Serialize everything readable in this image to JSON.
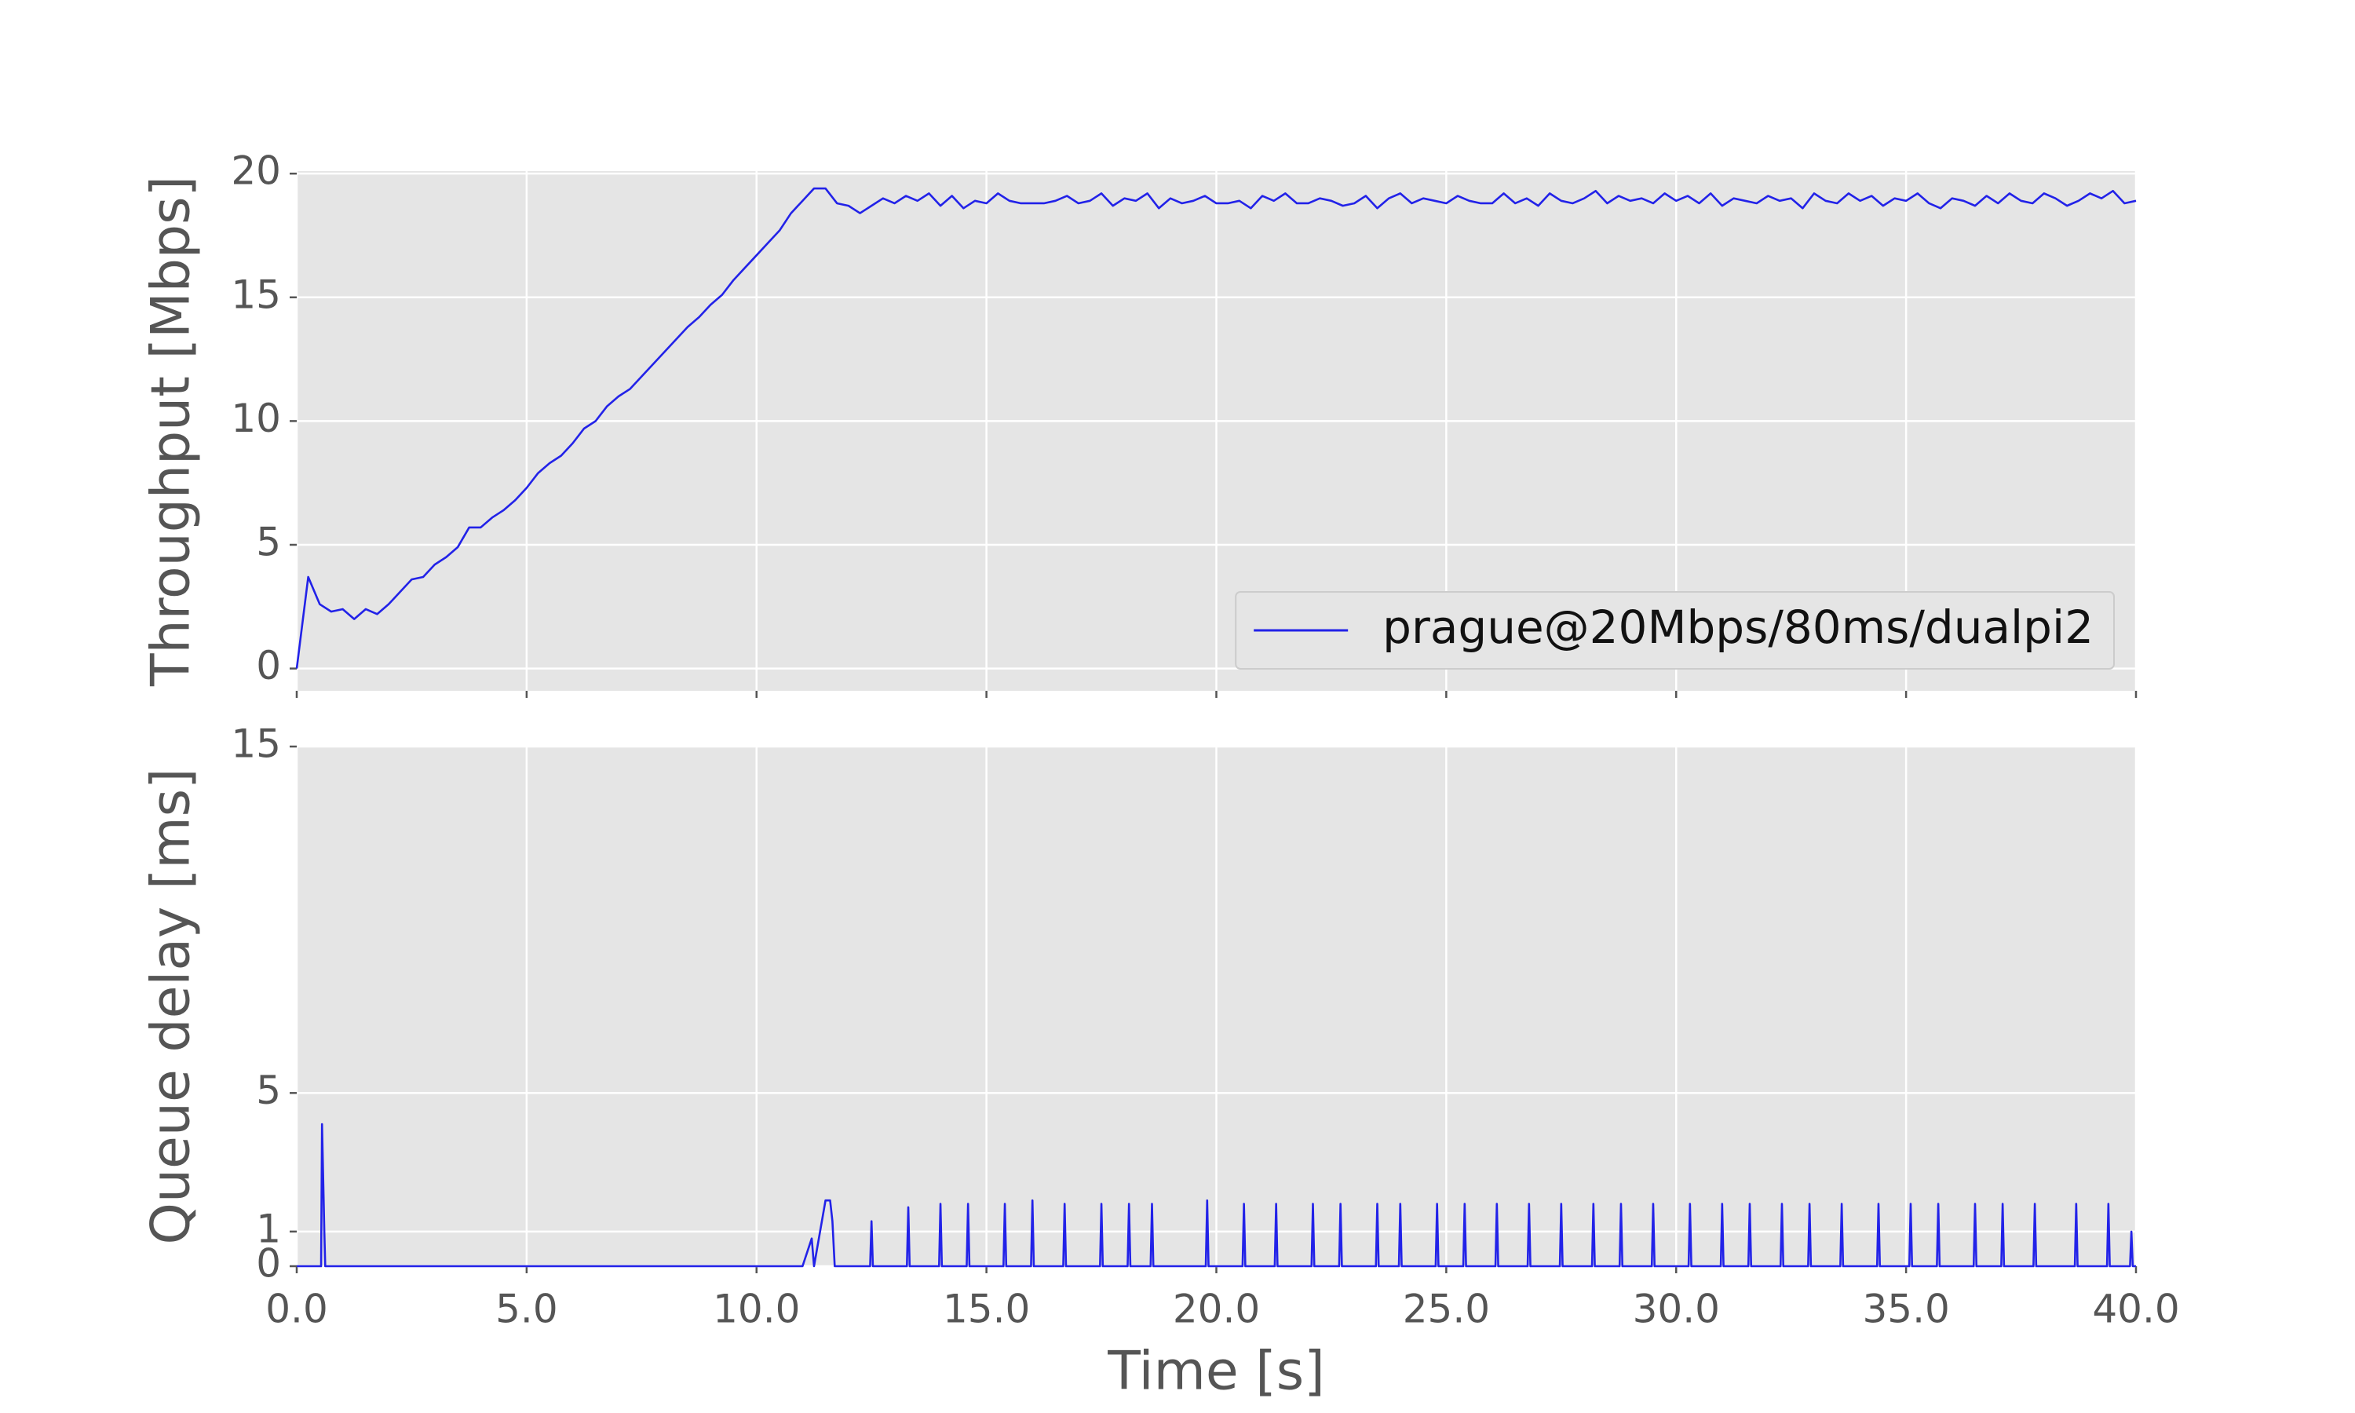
{
  "chart_data": [
    {
      "type": "line",
      "ylabel": "Throughput [Mbps]",
      "x": [
        0,
        0.25,
        0.5,
        0.75,
        1,
        1.25,
        1.5,
        1.75,
        2,
        2.25,
        2.5,
        2.75,
        3,
        3.25,
        3.5,
        3.75,
        4,
        4.25,
        4.5,
        4.75,
        5,
        5.25,
        5.5,
        5.75,
        6,
        6.25,
        6.5,
        6.75,
        7,
        7.25,
        7.5,
        7.75,
        8,
        8.25,
        8.5,
        8.75,
        9,
        9.25,
        9.5,
        9.75,
        10,
        10.25,
        10.5,
        10.75,
        11,
        11.25,
        11.5,
        11.75,
        12,
        12.25,
        12.5,
        12.75,
        13,
        13.25,
        13.5,
        13.75,
        14,
        14.25,
        14.5,
        14.75,
        15,
        15.25,
        15.5,
        15.75,
        16,
        16.25,
        16.5,
        16.75,
        17,
        17.25,
        17.5,
        17.75,
        18,
        18.25,
        18.5,
        18.75,
        19,
        19.25,
        19.5,
        19.75,
        20,
        20.25,
        20.5,
        20.75,
        21,
        21.25,
        21.5,
        21.75,
        22,
        22.25,
        22.5,
        22.75,
        23,
        23.25,
        23.5,
        23.75,
        24,
        24.25,
        24.5,
        24.75,
        25,
        25.25,
        25.5,
        25.75,
        26,
        26.25,
        26.5,
        26.75,
        27,
        27.25,
        27.5,
        27.75,
        28,
        28.25,
        28.5,
        28.75,
        29,
        29.25,
        29.5,
        29.75,
        30,
        30.25,
        30.5,
        30.75,
        31,
        31.25,
        31.5,
        31.75,
        32,
        32.25,
        32.5,
        32.75,
        33,
        33.25,
        33.5,
        33.75,
        34,
        34.25,
        34.5,
        34.75,
        35,
        35.25,
        35.5,
        35.75,
        36,
        36.25,
        36.5,
        36.75,
        37,
        37.25,
        37.5,
        37.75,
        38,
        38.25,
        38.5,
        38.75,
        39,
        39.25,
        39.5,
        39.75,
        40
      ],
      "series": [
        {
          "name": "prague@20Mbps/80ms/dualpi2",
          "color": "#2222e8",
          "values": [
            0,
            3.7,
            2.6,
            2.3,
            2.4,
            2.0,
            2.4,
            2.2,
            2.6,
            3.1,
            3.6,
            3.7,
            4.2,
            4.5,
            4.9,
            5.7,
            5.7,
            6.1,
            6.4,
            6.8,
            7.3,
            7.9,
            8.3,
            8.6,
            9.1,
            9.7,
            10.0,
            10.6,
            11.0,
            11.3,
            11.8,
            12.3,
            12.8,
            13.3,
            13.8,
            14.2,
            14.7,
            15.1,
            15.7,
            16.2,
            16.7,
            17.2,
            17.7,
            18.4,
            18.9,
            19.4,
            19.4,
            18.8,
            18.7,
            18.4,
            18.7,
            19.0,
            18.8,
            19.1,
            18.9,
            19.2,
            18.7,
            19.1,
            18.6,
            18.9,
            18.8,
            19.2,
            18.9,
            18.8,
            18.8,
            18.8,
            18.9,
            19.1,
            18.8,
            18.9,
            19.2,
            18.7,
            19.0,
            18.9,
            19.2,
            18.6,
            19.0,
            18.8,
            18.9,
            19.1,
            18.8,
            18.8,
            18.9,
            18.6,
            19.1,
            18.9,
            19.2,
            18.8,
            18.8,
            19.0,
            18.9,
            18.7,
            18.8,
            19.1,
            18.6,
            19.0,
            19.2,
            18.8,
            19.0,
            18.9,
            18.8,
            19.1,
            18.9,
            18.8,
            18.8,
            19.2,
            18.8,
            19.0,
            18.7,
            19.2,
            18.9,
            18.8,
            19.0,
            19.3,
            18.8,
            19.1,
            18.9,
            19.0,
            18.8,
            19.2,
            18.9,
            19.1,
            18.8,
            19.2,
            18.7,
            19.0,
            18.9,
            18.8,
            19.1,
            18.9,
            19.0,
            18.6,
            19.2,
            18.9,
            18.8,
            19.2,
            18.9,
            19.1,
            18.7,
            19.0,
            18.9,
            19.2,
            18.8,
            18.6,
            19.0,
            18.9,
            18.7,
            19.1,
            18.8,
            19.2,
            18.9,
            18.8,
            19.2,
            19.0,
            18.7,
            18.9,
            19.2,
            19.0,
            19.3,
            18.8,
            18.9
          ]
        }
      ],
      "xlim": [
        0,
        40
      ],
      "xticks": [
        0,
        5,
        10,
        15,
        20,
        25,
        30,
        35,
        40
      ],
      "ylim": [
        -0.9,
        20.1
      ],
      "yticks": [
        0,
        5,
        10,
        15,
        20
      ],
      "grid": true,
      "legend": "lower right"
    },
    {
      "type": "line",
      "ylabel": "Queue delay [ms]",
      "xlabel": "Time [s]",
      "x": [
        0,
        0.53,
        0.55,
        0.6,
        0.62,
        11.0,
        11.2,
        11.25,
        11.5,
        11.6,
        11.65,
        11.7,
        12.47,
        12.5,
        12.53,
        13.27,
        13.3,
        13.33,
        13.97,
        14.0,
        14.03,
        14.57,
        14.6,
        14.63,
        15.37,
        15.4,
        15.43,
        15.97,
        16.0,
        16.03,
        16.67,
        16.7,
        16.73,
        17.47,
        17.5,
        17.53,
        18.07,
        18.1,
        18.13,
        18.57,
        18.6,
        18.63,
        19.77,
        19.8,
        19.83,
        20.57,
        20.6,
        20.63,
        21.27,
        21.3,
        21.33,
        22.07,
        22.1,
        22.13,
        22.67,
        22.7,
        22.73,
        23.47,
        23.5,
        23.53,
        23.97,
        24.0,
        24.03,
        24.77,
        24.8,
        24.83,
        25.37,
        25.4,
        25.43,
        26.07,
        26.1,
        26.13,
        26.77,
        26.8,
        26.83,
        27.47,
        27.5,
        27.53,
        28.17,
        28.2,
        28.23,
        28.77,
        28.8,
        28.83,
        29.47,
        29.5,
        29.53,
        30.27,
        30.3,
        30.33,
        30.97,
        31.0,
        31.03,
        31.57,
        31.6,
        31.63,
        32.27,
        32.3,
        32.33,
        32.87,
        32.9,
        32.93,
        33.57,
        33.6,
        33.63,
        34.37,
        34.4,
        34.43,
        35.07,
        35.1,
        35.13,
        35.67,
        35.7,
        35.73,
        36.47,
        36.5,
        36.53,
        37.07,
        37.1,
        37.13,
        37.77,
        37.8,
        37.83,
        38.67,
        38.7,
        38.73,
        39.37,
        39.4,
        39.43,
        39.87,
        39.9,
        39.93,
        40
      ],
      "series": [
        {
          "color": "#2222e8",
          "values": [
            0,
            0,
            4.1,
            1.0,
            0,
            0,
            0.8,
            0,
            1.9,
            1.9,
            1.3,
            0,
            0,
            1.3,
            0,
            0,
            1.7,
            0,
            0,
            1.8,
            0,
            0,
            1.8,
            0,
            0,
            1.8,
            0,
            0,
            1.9,
            0,
            0,
            1.8,
            0,
            0,
            1.8,
            0,
            0,
            1.8,
            0,
            0,
            1.8,
            0,
            0,
            1.9,
            0,
            0,
            1.8,
            0,
            0,
            1.8,
            0,
            0,
            1.8,
            0,
            0,
            1.8,
            0,
            0,
            1.8,
            0,
            0,
            1.8,
            0,
            0,
            1.8,
            0,
            0,
            1.8,
            0,
            0,
            1.8,
            0,
            0,
            1.8,
            0,
            0,
            1.8,
            0,
            0,
            1.8,
            0,
            0,
            1.8,
            0,
            0,
            1.8,
            0,
            0,
            1.8,
            0,
            0,
            1.8,
            0,
            0,
            1.8,
            0,
            0,
            1.8,
            0,
            0,
            1.8,
            0,
            0,
            1.8,
            0,
            0,
            1.8,
            0,
            0,
            1.8,
            0,
            0,
            1.8,
            0,
            0,
            1.8,
            0,
            0,
            1.8,
            0,
            0,
            1.8,
            0,
            0,
            1.8,
            0,
            0,
            1.8,
            0,
            0,
            1.0,
            0,
            0
          ]
        }
      ],
      "xlim": [
        0,
        40
      ],
      "xticks": [
        {
          "value": 0,
          "label": "0.0"
        },
        {
          "value": 5,
          "label": "5.0"
        },
        {
          "value": 10,
          "label": "10.0"
        },
        {
          "value": 15,
          "label": "15.0"
        },
        {
          "value": 20,
          "label": "20.0"
        },
        {
          "value": 25,
          "label": "25.0"
        },
        {
          "value": 30,
          "label": "30.0"
        },
        {
          "value": 35,
          "label": "35.0"
        },
        {
          "value": 40,
          "label": "40.0"
        }
      ],
      "ylim": [
        0,
        15
      ],
      "yticks": [
        0,
        1,
        5,
        15
      ],
      "grid": true
    }
  ]
}
